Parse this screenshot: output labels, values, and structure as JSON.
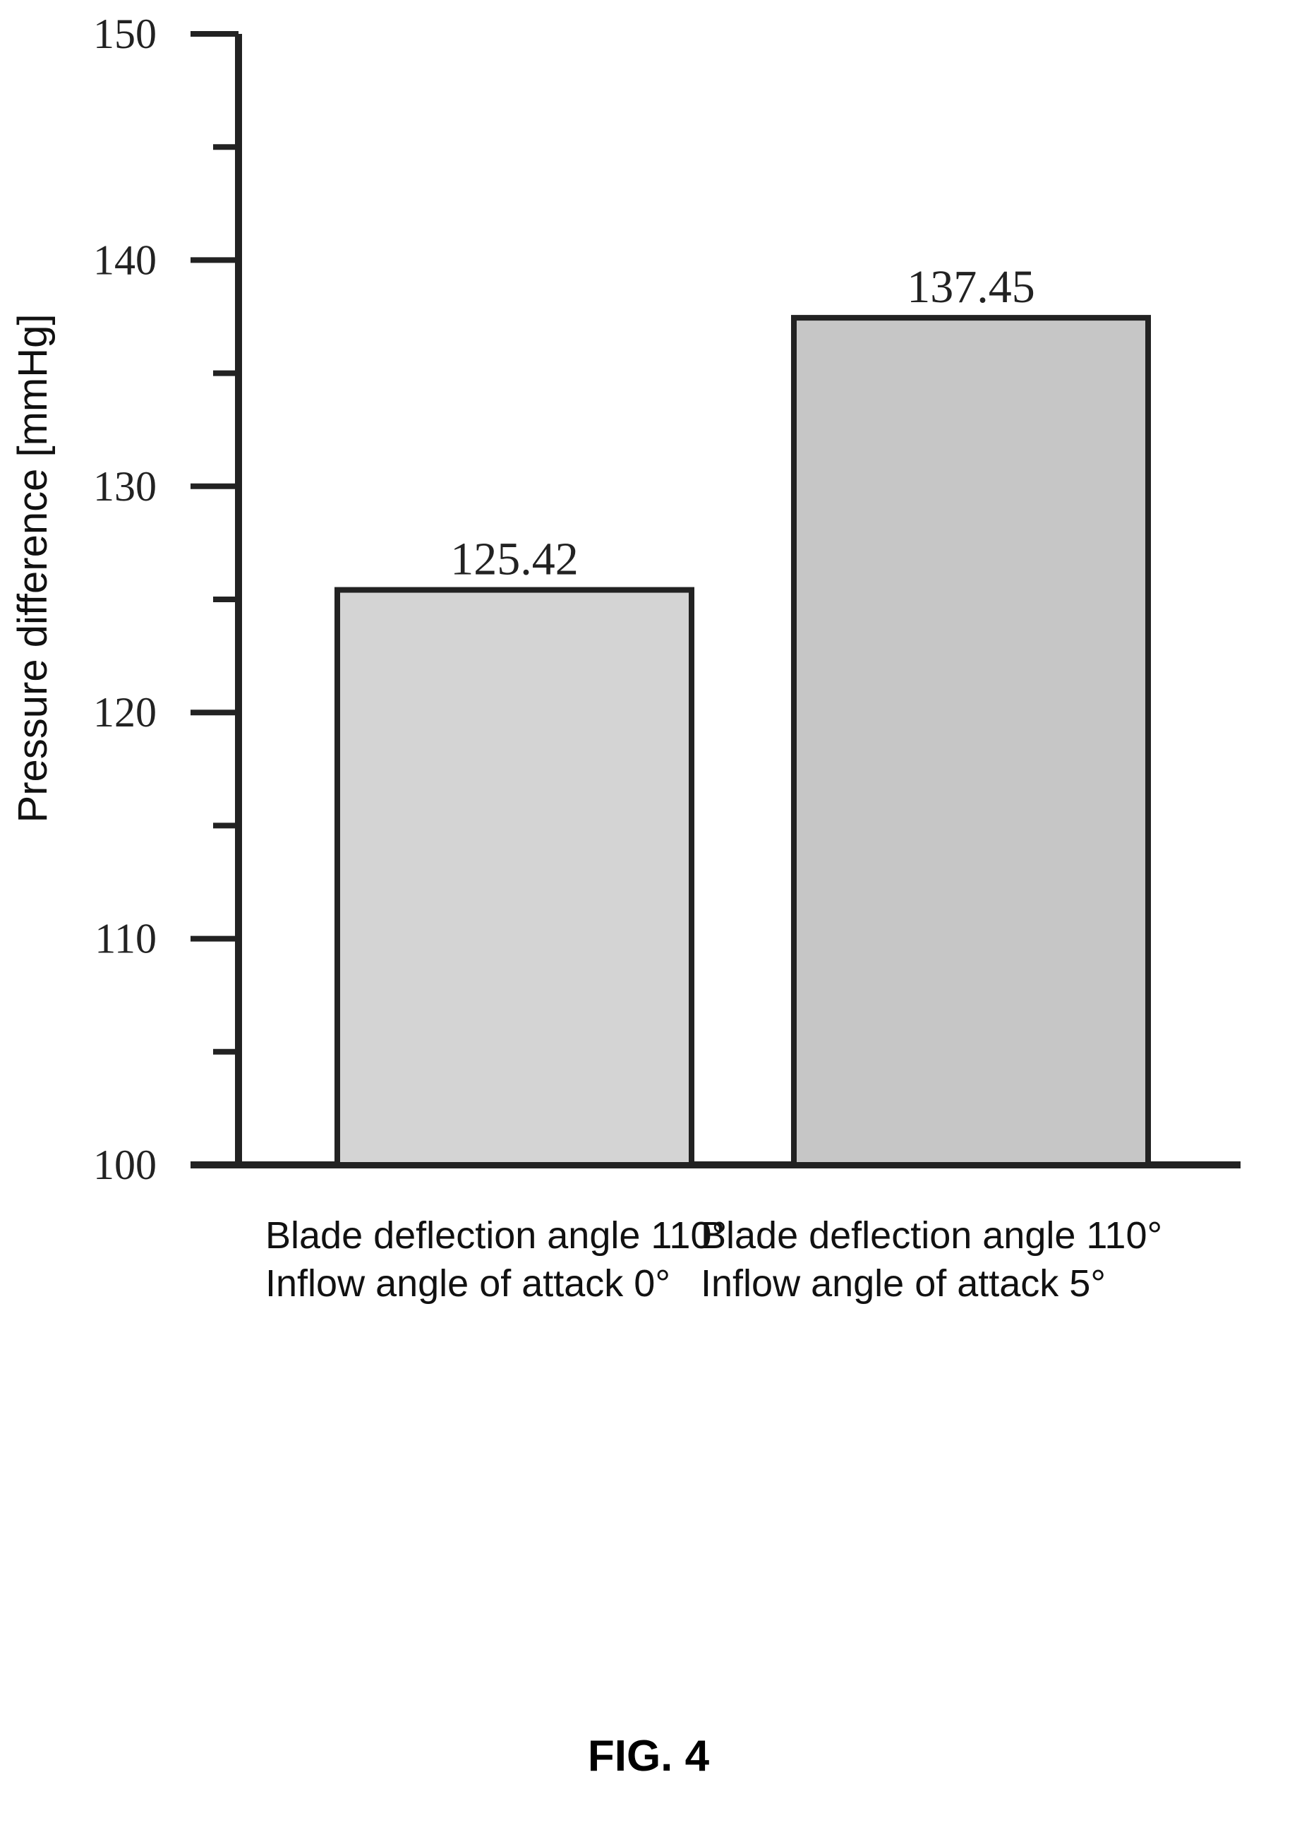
{
  "chart_data": {
    "type": "bar",
    "categories": [
      [
        "Blade deflection angle 110°",
        "Inflow angle of attack 0°"
      ],
      [
        "Blade deflection angle 110°",
        "Inflow angle of attack 5°"
      ]
    ],
    "values": [
      125.42,
      137.45
    ],
    "value_labels": [
      "125.42",
      "137.45"
    ],
    "title": "",
    "xlabel": "",
    "ylabel": "Pressure difference [mmHg]",
    "ylim": [
      100,
      150
    ],
    "major_ticks": [
      100,
      110,
      120,
      130,
      140,
      150
    ],
    "minor_tick_step": 5,
    "grid": false,
    "legend": "none",
    "bar_colors": [
      "#d4d4d4",
      "#c6c6c6"
    ]
  },
  "figure_label": "FIG. 4"
}
